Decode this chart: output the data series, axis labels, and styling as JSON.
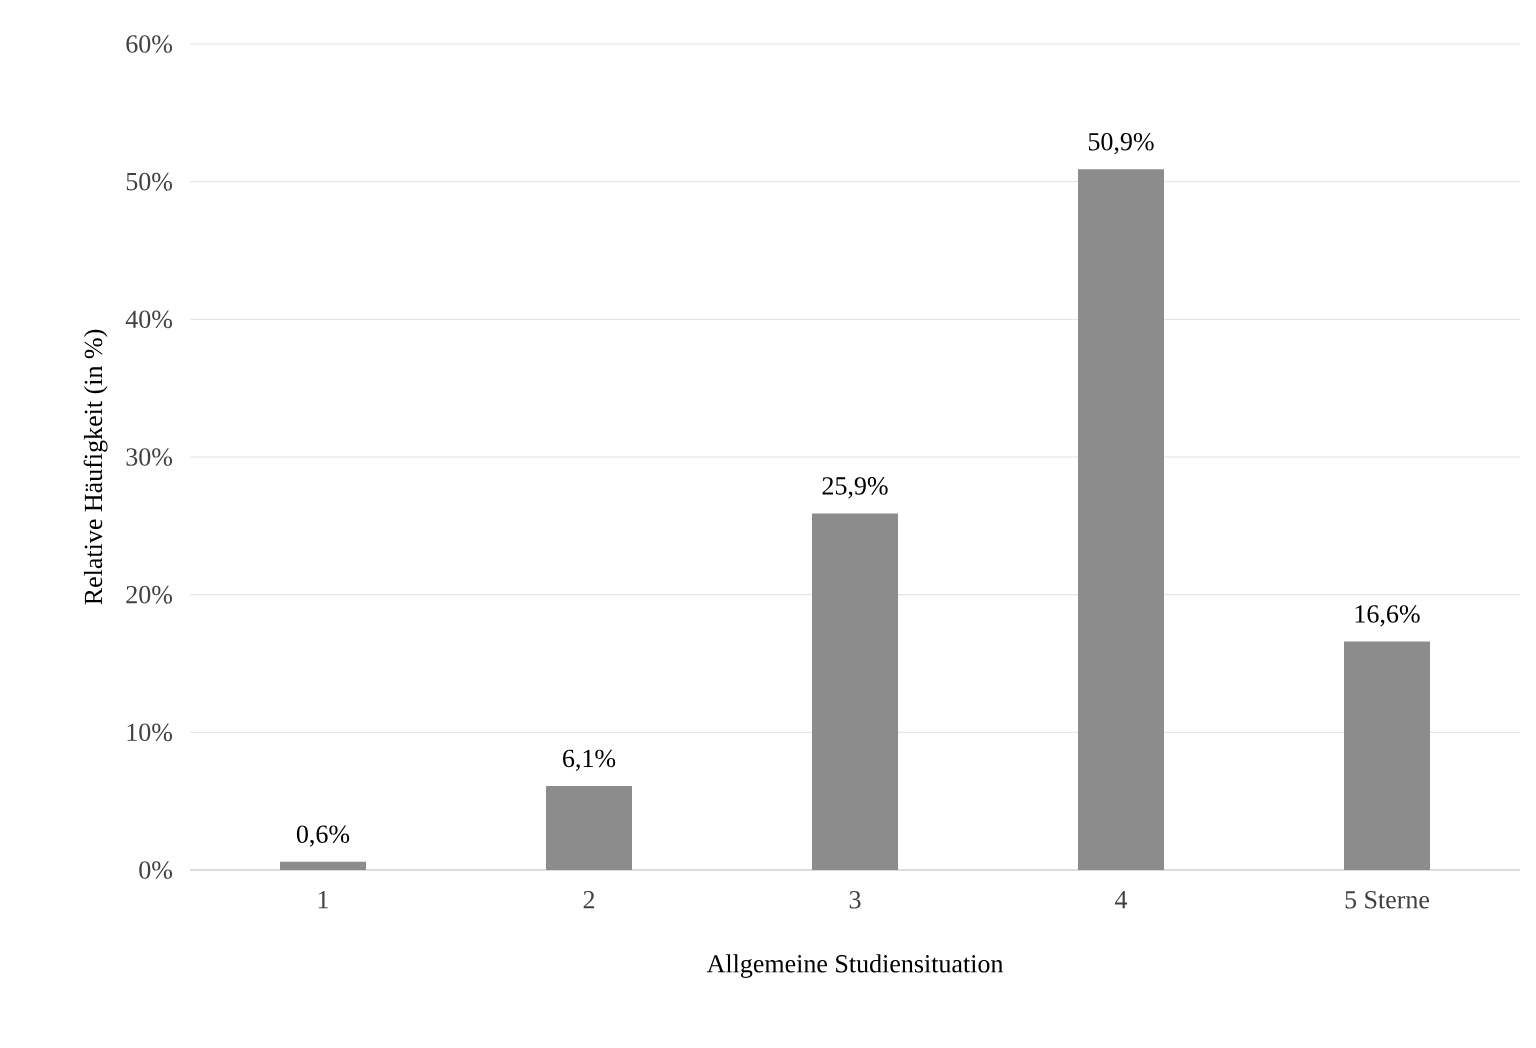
{
  "chart_data": {
    "type": "bar",
    "xlabel": "Allgemeine Studiensituation",
    "ylabel": "Relative Häufigkeit (in %)",
    "categories": [
      "1",
      "2",
      "3",
      "4",
      "5 Sterne"
    ],
    "values": [
      0.6,
      6.1,
      25.9,
      50.9,
      16.6
    ],
    "value_labels": [
      "0,6%",
      "6,1%",
      "25,9%",
      "50,9%",
      "16,6%"
    ],
    "color": "#8c8c8c",
    "ylim": [
      0,
      60
    ],
    "yticks": [
      {
        "value": 0,
        "label": "0%"
      },
      {
        "value": 10,
        "label": "10%"
      },
      {
        "value": 20,
        "label": "20%"
      },
      {
        "value": 30,
        "label": "30%"
      },
      {
        "value": 40,
        "label": "40%"
      },
      {
        "value": 50,
        "label": "50%"
      },
      {
        "value": 60,
        "label": "60%"
      }
    ],
    "grid": "y"
  }
}
